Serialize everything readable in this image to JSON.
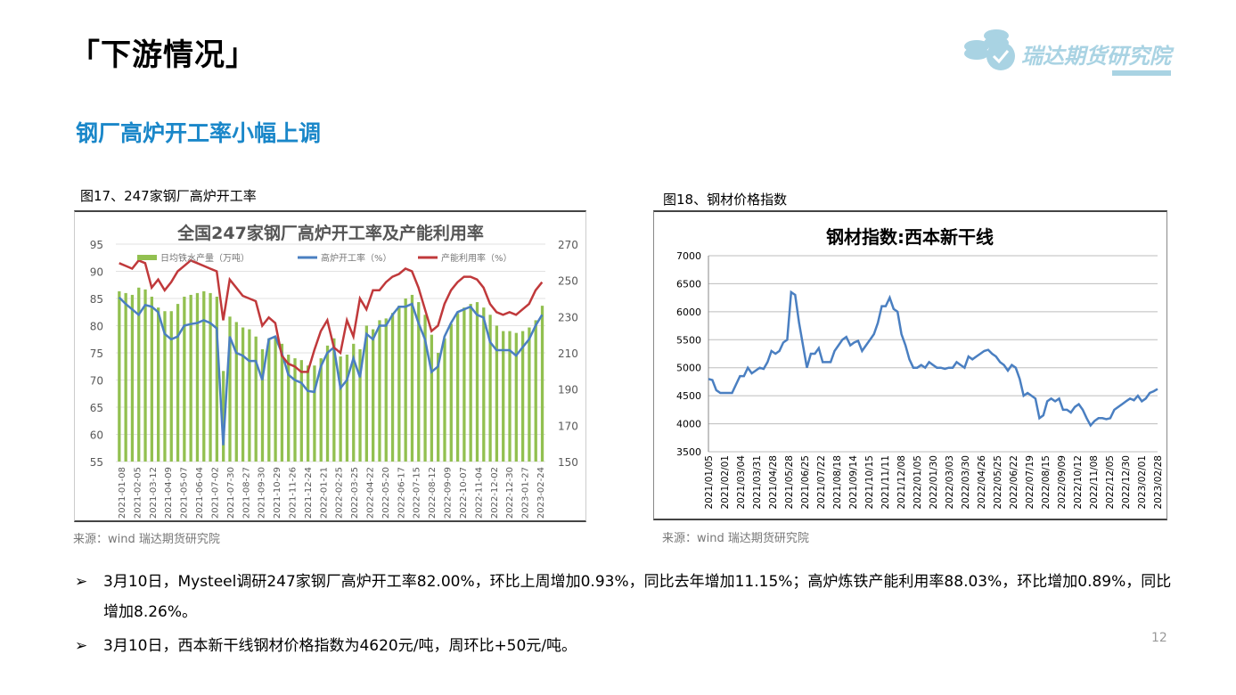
{
  "header": {
    "title": "「下游情况」",
    "subtitle": "钢厂高炉开工率小幅上调",
    "logo_text": "瑞达期货研究院",
    "page_number": "12"
  },
  "figures": [
    {
      "caption": "图17、247家钢厂高炉开工率",
      "source": "来源：wind   瑞达期货研究院"
    },
    {
      "caption": "图18、钢材价格指数",
      "source": "来源：wind   瑞达期货研究院"
    }
  ],
  "bullets": [
    "3月10日，Mysteel调研247家钢厂高炉开工率82.00%，环比上周增加0.93%，同比去年增加11.15%；高炉炼铁产能利用率88.03%，环比增加0.89%，同比增加8.26%。",
    "3月10日，西本新干线钢材价格指数为4620元/吨，周环比+50元/吨。"
  ],
  "chart_data": [
    {
      "type": "bar+line",
      "title": "全国247家钢厂高炉开工率及产能利用率",
      "ylim_left": [
        55,
        95
      ],
      "yticks_left": [
        "95",
        "90",
        "85",
        "80",
        "75",
        "70",
        "65",
        "60",
        "55"
      ],
      "ylim_right": [
        150,
        270
      ],
      "yticks_right": [
        "270",
        "250",
        "230",
        "210",
        "190",
        "170",
        "150"
      ],
      "xticks": [
        "2021-01-08",
        "2021-02-05",
        "2021-03-12",
        "2021-04-09",
        "2021-05-07",
        "2021-06-04",
        "2021-07-02",
        "2021-07-30",
        "2021-08-27",
        "2021-09-30",
        "2021-10-29",
        "2021-11-26",
        "2021-12-24",
        "2022-01-21",
        "2022-02-25",
        "2022-03-25",
        "2022-04-22",
        "2022-05-20",
        "2022-06-17",
        "2022-07-15",
        "2022-08-12",
        "2022-09-09",
        "2022-10-07",
        "2022-11-04",
        "2022-12-02",
        "2022-12-30",
        "2023-01-27",
        "2023-02-24"
      ],
      "legend": "top",
      "colors": {
        "bar": "#92c050",
        "blue": "#4a7fc1",
        "red": "#c0393b"
      },
      "series": [
        {
          "name": "日均铁水产量（万吨）",
          "axis": "right",
          "kind": "bar",
          "values": [
            244,
            243,
            242,
            246,
            245,
            241,
            235,
            233,
            233,
            237,
            241,
            242,
            243,
            244,
            243,
            241,
            200,
            230,
            227,
            224,
            223,
            219,
            212,
            218,
            219,
            215,
            209,
            207,
            206,
            203,
            203,
            207,
            214,
            218,
            208,
            209,
            215,
            212,
            225,
            223,
            228,
            229,
            232,
            236,
            240,
            242,
            238,
            231,
            220,
            210,
            218,
            226,
            232,
            235,
            237,
            238,
            235,
            231,
            225,
            222,
            222,
            221,
            222,
            224,
            228,
            236
          ]
        },
        {
          "name": "高炉开工率（%）",
          "axis": "left",
          "kind": "line",
          "values": [
            85.2,
            84,
            83,
            82,
            83.8,
            83.5,
            82.5,
            78.5,
            77.5,
            78,
            80,
            80.3,
            80.5,
            81,
            80.5,
            79.5,
            58,
            78,
            75,
            74.5,
            73.5,
            73.5,
            70,
            77.5,
            78,
            75,
            71,
            70,
            69.5,
            68,
            67.8,
            72.5,
            75,
            76,
            68.5,
            70,
            74,
            70.5,
            78.5,
            77.5,
            80,
            80,
            82,
            83.5,
            83.5,
            84,
            80.5,
            77.5,
            71.5,
            72.5,
            78,
            80.5,
            82.5,
            83,
            83.5,
            82,
            81.5,
            77,
            75.5,
            75.5,
            75.5,
            74.5,
            76,
            77.5,
            80,
            82
          ]
        },
        {
          "name": "产能利用率（%）",
          "axis": "left",
          "kind": "line",
          "values": [
            91.5,
            91,
            90.5,
            92,
            91.5,
            87,
            88.5,
            86.5,
            88,
            90,
            91,
            92,
            91.5,
            91,
            90.5,
            90,
            81,
            88.5,
            87,
            85.5,
            85,
            84.5,
            80,
            81.5,
            80.5,
            74.5,
            73,
            72.5,
            71.5,
            71.5,
            75.5,
            79,
            81,
            76,
            75,
            81,
            78,
            85,
            83,
            86.5,
            86.5,
            88,
            89,
            89.5,
            90.5,
            90,
            87,
            83,
            79,
            80,
            84,
            86.5,
            88,
            89,
            89,
            88.5,
            87,
            84,
            82.5,
            82,
            82.5,
            82,
            83,
            84,
            86.5,
            88
          ]
        }
      ]
    },
    {
      "type": "line",
      "title": "钢材指数:西本新干线",
      "ylim": [
        3500,
        7000
      ],
      "yticks": [
        "7000",
        "6500",
        "6000",
        "5500",
        "5000",
        "4500",
        "4000",
        "3500"
      ],
      "xticks": [
        "2021/01/05",
        "2021/02/01",
        "2021/03/04",
        "2021/03/31",
        "2021/04/28",
        "2021/05/28",
        "2021/06/25",
        "2021/07/22",
        "2021/08/18",
        "2021/09/14",
        "2021/10/15",
        "2021/11/11",
        "2021/12/08",
        "2022/01/05",
        "2022/01/30",
        "2022/03/03",
        "2022/03/30",
        "2022/04/26",
        "2022/05/25",
        "2022/06/22",
        "2022/07/19",
        "2022/08/15",
        "2022/09/09",
        "2022/10/12",
        "2022/11/08",
        "2022/12/05",
        "2022/12/30",
        "2023/02/01",
        "2023/02/28"
      ],
      "color": "#4a7fc1",
      "values": [
        4800,
        4780,
        4600,
        4550,
        4550,
        4550,
        4550,
        4700,
        4850,
        4850,
        5000,
        4900,
        4950,
        5000,
        4980,
        5100,
        5300,
        5250,
        5300,
        5450,
        5500,
        6350,
        6300,
        5800,
        5400,
        5000,
        5250,
        5250,
        5350,
        5100,
        5100,
        5100,
        5300,
        5400,
        5500,
        5550,
        5400,
        5450,
        5480,
        5300,
        5400,
        5500,
        5600,
        5800,
        6100,
        6100,
        6250,
        6050,
        6000,
        5600,
        5400,
        5150,
        5000,
        5000,
        5050,
        5000,
        5100,
        5050,
        5000,
        5000,
        4980,
        5000,
        5000,
        5100,
        5050,
        5000,
        5200,
        5150,
        5200,
        5250,
        5300,
        5320,
        5250,
        5200,
        5100,
        5050,
        4950,
        5050,
        5000,
        4800,
        4500,
        4550,
        4500,
        4450,
        4100,
        4150,
        4400,
        4450,
        4400,
        4450,
        4250,
        4250,
        4200,
        4300,
        4350,
        4250,
        4100,
        3970,
        4050,
        4100,
        4100,
        4080,
        4100,
        4250,
        4300,
        4350,
        4400,
        4450,
        4420,
        4500,
        4400,
        4450,
        4550,
        4580,
        4620
      ]
    }
  ]
}
